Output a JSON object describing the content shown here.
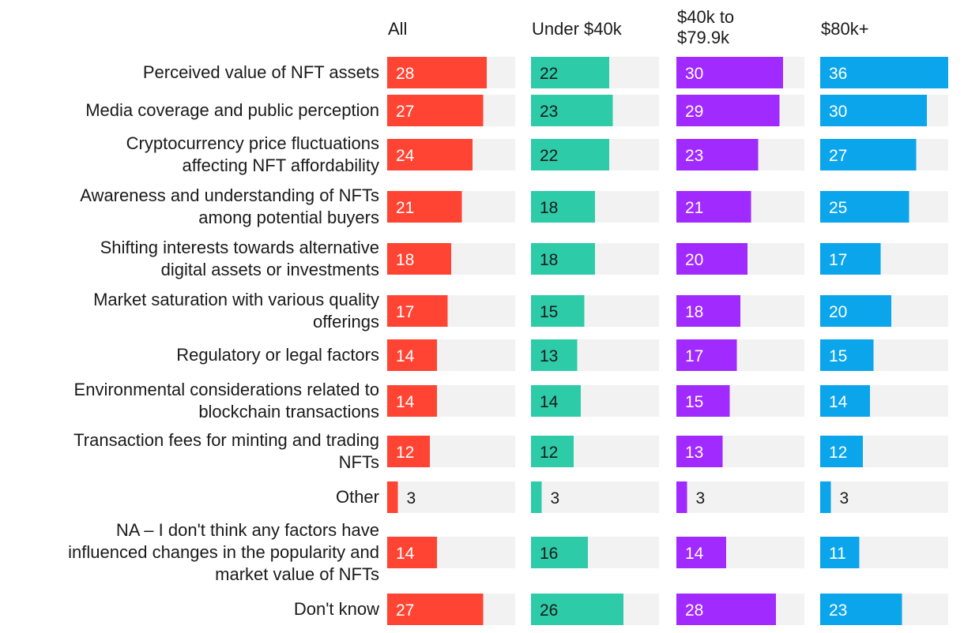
{
  "chart_data": {
    "type": "bar",
    "orientation": "horizontal",
    "layout": "small-multiples",
    "scale_max": 36,
    "series": [
      {
        "name": "All",
        "name_lines": [
          "All"
        ],
        "color": "#ff4433",
        "values": [
          28,
          27,
          24,
          21,
          18,
          17,
          14,
          14,
          12,
          3,
          14,
          27
        ]
      },
      {
        "name": "Under $40k",
        "name_lines": [
          "Under $40k"
        ],
        "color": "#2ecba8",
        "values": [
          22,
          23,
          22,
          18,
          18,
          15,
          13,
          14,
          12,
          3,
          16,
          26
        ]
      },
      {
        "name": "$40k to $79.9k",
        "name_lines": [
          "$40k to",
          "$79.9k"
        ],
        "color": "#a02aff",
        "values": [
          30,
          29,
          23,
          21,
          20,
          18,
          17,
          15,
          13,
          3,
          14,
          28
        ]
      },
      {
        "name": "$80k+",
        "name_lines": [
          "$80k+"
        ],
        "color": "#0ba5ec",
        "values": [
          36,
          30,
          27,
          25,
          17,
          20,
          15,
          14,
          12,
          3,
          11,
          23
        ]
      }
    ],
    "categories": [
      {
        "name": "Perceived value of NFT assets",
        "lines": [
          "Perceived value of NFT assets"
        ]
      },
      {
        "name": "Media coverage and public perception",
        "lines": [
          "Media coverage and public perception"
        ]
      },
      {
        "name": "Cryptocurrency price fluctuations affecting NFT affordability",
        "lines": [
          "Cryptocurrency price fluctuations",
          "affecting NFT affordability"
        ]
      },
      {
        "name": "Awareness and understanding of NFTs among potential buyers",
        "lines": [
          "Awareness and understanding of NFTs",
          "among potential buyers"
        ]
      },
      {
        "name": "Shifting interests towards alternative digital assets or investments",
        "lines": [
          "Shifting interests towards alternative",
          "digital assets or investments"
        ]
      },
      {
        "name": "Market saturation with various quality offerings",
        "lines": [
          "Market saturation with various quality",
          "offerings"
        ]
      },
      {
        "name": "Regulatory or legal factors",
        "lines": [
          "Regulatory or legal factors"
        ]
      },
      {
        "name": "Environmental considerations related to blockchain transactions",
        "lines": [
          "Environmental considerations related to",
          "blockchain transactions"
        ]
      },
      {
        "name": "Transaction fees for minting and trading NFTs",
        "lines": [
          "Transaction fees for minting and trading",
          "NFTs"
        ]
      },
      {
        "name": "Other",
        "lines": [
          "Other"
        ]
      },
      {
        "name": "NA – I don't think any factors have influenced changes in the popularity and market value of NFTs",
        "lines": [
          "NA – I don't think any factors have",
          "influenced changes in the popularity and",
          "market value of NFTs"
        ]
      },
      {
        "name": "Don't know",
        "lines": [
          "Don't know"
        ]
      }
    ],
    "track_color": "#f2f2f2",
    "value_label_color_inside": "#ffffff",
    "value_label_color_outside": "#1a1a1a",
    "value_label_color_inside_on_teal": "#1a1a1a"
  }
}
